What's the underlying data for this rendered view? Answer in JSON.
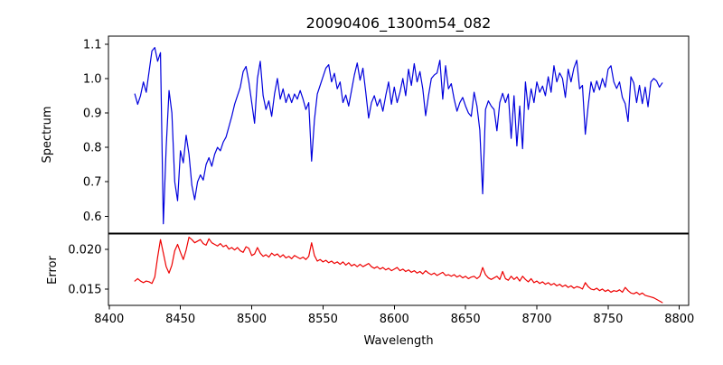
{
  "title": "20090406_1300m54_082",
  "chart_data": {
    "type": "line",
    "title": "20090406_1300m54_082",
    "xlabel": "Wavelength",
    "grid": false,
    "legend": "none",
    "xlim": [
      8399.5,
      8806.5
    ],
    "xticks": [
      8400,
      8450,
      8500,
      8550,
      8600,
      8650,
      8700,
      8750,
      8800
    ],
    "xtick_labels": [
      "8400",
      "8450",
      "8500",
      "8550",
      "8600",
      "8650",
      "8700",
      "8750",
      "8800"
    ],
    "x": [
      8418,
      8420,
      8422,
      8424,
      8426,
      8428,
      8430,
      8432,
      8434,
      8436,
      8438,
      8440,
      8442,
      8444,
      8446,
      8448,
      8450,
      8452,
      8454,
      8456,
      8458,
      8460,
      8462,
      8464,
      8466,
      8468,
      8470,
      8472,
      8474,
      8476,
      8478,
      8480,
      8482,
      8484,
      8486,
      8488,
      8490,
      8492,
      8494,
      8496,
      8498,
      8500,
      8502,
      8504,
      8506,
      8508,
      8510,
      8512,
      8514,
      8516,
      8518,
      8520,
      8522,
      8524,
      8526,
      8528,
      8530,
      8532,
      8534,
      8536,
      8538,
      8540,
      8542,
      8544,
      8546,
      8548,
      8550,
      8552,
      8554,
      8556,
      8558,
      8560,
      8562,
      8564,
      8566,
      8568,
      8570,
      8572,
      8574,
      8576,
      8578,
      8580,
      8582,
      8584,
      8586,
      8588,
      8590,
      8592,
      8594,
      8596,
      8598,
      8600,
      8602,
      8604,
      8606,
      8608,
      8610,
      8612,
      8614,
      8616,
      8618,
      8620,
      8622,
      8624,
      8626,
      8628,
      8630,
      8632,
      8634,
      8636,
      8638,
      8640,
      8642,
      8644,
      8646,
      8648,
      8650,
      8652,
      8654,
      8656,
      8658,
      8660,
      8662,
      8664,
      8666,
      8668,
      8670,
      8672,
      8674,
      8676,
      8678,
      8680,
      8682,
      8684,
      8686,
      8688,
      8690,
      8692,
      8694,
      8696,
      8698,
      8700,
      8702,
      8704,
      8706,
      8708,
      8710,
      8712,
      8714,
      8716,
      8718,
      8720,
      8722,
      8724,
      8726,
      8728,
      8730,
      8732,
      8734,
      8736,
      8738,
      8740,
      8742,
      8744,
      8746,
      8748,
      8750,
      8752,
      8754,
      8756,
      8758,
      8760,
      8762,
      8764,
      8766,
      8768,
      8770,
      8772,
      8774,
      8776,
      8778,
      8780,
      8782,
      8784,
      8786,
      8788
    ],
    "panels": [
      {
        "name": "spectrum",
        "ylabel": "Spectrum",
        "color": "#0000dd",
        "ylim": [
          0.551,
          1.123
        ],
        "yticks": [
          0.6,
          0.7,
          0.8,
          0.9,
          1.0,
          1.1
        ],
        "ytick_labels": [
          "0.6",
          "0.7",
          "0.8",
          "0.9",
          "1.0",
          "1.1"
        ],
        "values": [
          0.955,
          0.925,
          0.95,
          0.99,
          0.96,
          1.02,
          1.08,
          1.09,
          1.05,
          1.075,
          0.578,
          0.8,
          0.965,
          0.9,
          0.7,
          0.645,
          0.79,
          0.755,
          0.835,
          0.78,
          0.69,
          0.648,
          0.7,
          0.72,
          0.705,
          0.75,
          0.77,
          0.745,
          0.78,
          0.8,
          0.79,
          0.815,
          0.83,
          0.86,
          0.89,
          0.925,
          0.95,
          0.975,
          1.02,
          1.035,
          0.99,
          0.93,
          0.87,
          1.0,
          1.05,
          0.95,
          0.91,
          0.935,
          0.89,
          0.955,
          1.0,
          0.94,
          0.97,
          0.93,
          0.955,
          0.93,
          0.955,
          0.94,
          0.965,
          0.94,
          0.91,
          0.93,
          0.76,
          0.88,
          0.955,
          0.98,
          1.005,
          1.03,
          1.04,
          0.99,
          1.015,
          0.97,
          0.99,
          0.93,
          0.952,
          0.92,
          0.965,
          1.01,
          1.045,
          0.995,
          1.03,
          0.96,
          0.885,
          0.93,
          0.95,
          0.92,
          0.94,
          0.905,
          0.95,
          0.99,
          0.925,
          0.975,
          0.93,
          0.96,
          1.0,
          0.95,
          1.027,
          0.98,
          1.043,
          0.99,
          1.02,
          0.97,
          0.892,
          0.95,
          1.0,
          1.01,
          1.016,
          1.053,
          0.94,
          1.037,
          0.97,
          0.985,
          0.94,
          0.905,
          0.93,
          0.945,
          0.92,
          0.9,
          0.89,
          0.96,
          0.92,
          0.85,
          0.665,
          0.91,
          0.935,
          0.92,
          0.91,
          0.848,
          0.93,
          0.957,
          0.93,
          0.955,
          0.826,
          0.95,
          0.804,
          0.92,
          0.796,
          0.99,
          0.91,
          0.97,
          0.93,
          0.99,
          0.96,
          0.978,
          0.95,
          1.005,
          0.96,
          1.037,
          0.99,
          1.016,
          1.0,
          0.945,
          1.027,
          0.99,
          1.03,
          1.053,
          0.97,
          0.98,
          0.838,
          0.92,
          0.99,
          0.96,
          0.993,
          0.967,
          1.0,
          0.975,
          1.027,
          1.037,
          0.99,
          0.971,
          0.99,
          0.945,
          0.927,
          0.875,
          1.005,
          0.987,
          0.93,
          0.98,
          0.927,
          0.975,
          0.918,
          0.99,
          1.0,
          0.993,
          0.975,
          0.987
        ]
      },
      {
        "name": "error",
        "ylabel": "Error",
        "color": "#ee0000",
        "ylim": [
          0.01295,
          0.0219
        ],
        "yticks": [
          0.015,
          0.02
        ],
        "ytick_labels": [
          "0.015",
          "0.020"
        ],
        "values": [
          0.016,
          0.0163,
          0.016,
          0.0158,
          0.016,
          0.0159,
          0.0157,
          0.0165,
          0.019,
          0.0212,
          0.0195,
          0.0178,
          0.017,
          0.018,
          0.0198,
          0.0206,
          0.0196,
          0.0187,
          0.0199,
          0.0215,
          0.0212,
          0.0208,
          0.021,
          0.0212,
          0.0207,
          0.0205,
          0.0213,
          0.0208,
          0.0206,
          0.0204,
          0.0207,
          0.0203,
          0.0205,
          0.02,
          0.0202,
          0.0199,
          0.0202,
          0.0198,
          0.0196,
          0.0203,
          0.0201,
          0.0192,
          0.0194,
          0.0202,
          0.0195,
          0.0191,
          0.0193,
          0.019,
          0.0195,
          0.0192,
          0.0194,
          0.019,
          0.0193,
          0.0189,
          0.0191,
          0.0188,
          0.0192,
          0.019,
          0.0188,
          0.019,
          0.0187,
          0.0191,
          0.0208,
          0.0192,
          0.0185,
          0.0187,
          0.0184,
          0.0186,
          0.0183,
          0.0185,
          0.0182,
          0.0184,
          0.0181,
          0.0184,
          0.018,
          0.0183,
          0.0179,
          0.0181,
          0.0178,
          0.0181,
          0.0178,
          0.018,
          0.0182,
          0.0178,
          0.0176,
          0.0178,
          0.0175,
          0.0177,
          0.0174,
          0.0176,
          0.0173,
          0.0175,
          0.0177,
          0.0173,
          0.0175,
          0.0172,
          0.0174,
          0.0171,
          0.0173,
          0.017,
          0.0172,
          0.0169,
          0.0173,
          0.017,
          0.0168,
          0.017,
          0.0167,
          0.0169,
          0.0171,
          0.0167,
          0.0168,
          0.0166,
          0.0168,
          0.0165,
          0.0167,
          0.0164,
          0.0166,
          0.0163,
          0.0165,
          0.0166,
          0.0163,
          0.0166,
          0.0177,
          0.0168,
          0.0164,
          0.0162,
          0.0164,
          0.0166,
          0.0162,
          0.0172,
          0.0163,
          0.0161,
          0.0166,
          0.0162,
          0.0165,
          0.016,
          0.0166,
          0.0162,
          0.0159,
          0.0163,
          0.0158,
          0.016,
          0.0157,
          0.0159,
          0.0156,
          0.0158,
          0.0155,
          0.0157,
          0.0154,
          0.0156,
          0.0153,
          0.0155,
          0.0152,
          0.0154,
          0.0151,
          0.0153,
          0.0152,
          0.015,
          0.0158,
          0.0153,
          0.015,
          0.0149,
          0.0151,
          0.0148,
          0.015,
          0.0147,
          0.0149,
          0.0146,
          0.0148,
          0.0147,
          0.0149,
          0.0146,
          0.0152,
          0.0148,
          0.0145,
          0.0144,
          0.0146,
          0.0143,
          0.0145,
          0.0142,
          0.0141,
          0.014,
          0.0139,
          0.0137,
          0.0135,
          0.0133
        ]
      }
    ]
  }
}
